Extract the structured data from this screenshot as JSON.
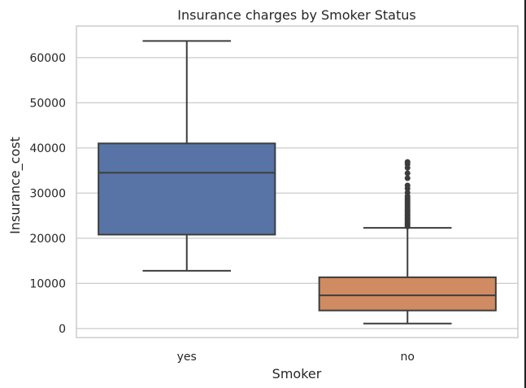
{
  "chart_data": {
    "type": "box",
    "title": "Insurance charges by Smoker Status",
    "xlabel": "Smoker",
    "ylabel": "Insurance_cost",
    "categories": [
      "yes",
      "no"
    ],
    "ylim": [
      -2000,
      67000
    ],
    "yticks": [
      0,
      10000,
      20000,
      30000,
      40000,
      50000,
      60000
    ],
    "ytick_labels": [
      "0",
      "10000",
      "20000",
      "30000",
      "40000",
      "50000",
      "60000"
    ],
    "grid": true,
    "series": [
      {
        "category": "yes",
        "color": "#5874a6",
        "whisker_low": 12800,
        "q1": 20800,
        "median": 34500,
        "q3": 41000,
        "whisker_high": 63700,
        "outliers": []
      },
      {
        "category": "no",
        "color": "#d08b62",
        "whisker_low": 1100,
        "q1": 4000,
        "median": 7350,
        "q3": 11350,
        "whisker_high": 22300,
        "outliers": [
          22600,
          22900,
          23200,
          23500,
          23800,
          24100,
          24400,
          24700,
          25000,
          25300,
          25600,
          25900,
          26200,
          26500,
          26900,
          27300,
          27700,
          28100,
          28500,
          28900,
          29300,
          30100,
          31000,
          31700,
          33300,
          34400,
          35600,
          36400,
          36900
        ]
      }
    ]
  }
}
